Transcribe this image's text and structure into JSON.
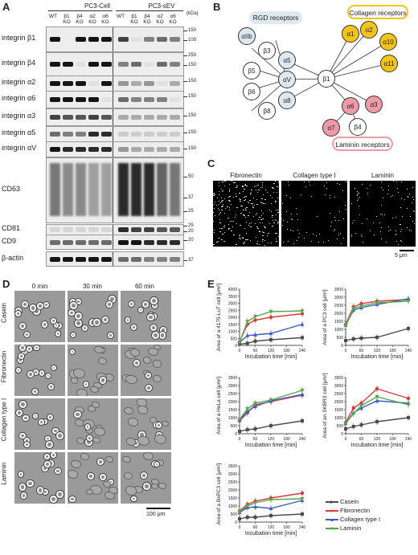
{
  "panels": {
    "a": "A",
    "b": "B",
    "c": "C",
    "d": "D",
    "e": "E"
  },
  "panelA": {
    "group_left": "PC3-Cell",
    "group_right": "PC3-sEV",
    "unit": "(kDa)",
    "lanes": [
      "WT",
      "β1 KO",
      "β4 KO",
      "α2 KO",
      "α6 KO"
    ],
    "rows": [
      {
        "label": "integrin β1",
        "marks": [
          "150",
          "100"
        ]
      },
      {
        "label": "integrin β4",
        "marks": [
          "250",
          "150"
        ]
      },
      {
        "label": "integrin α2",
        "marks": [
          "150"
        ]
      },
      {
        "label": "integrin α6",
        "marks": [
          "150"
        ]
      },
      {
        "label": "integrin α3",
        "marks": [
          "150"
        ]
      },
      {
        "label": "integrin α5",
        "marks": [
          "150"
        ]
      },
      {
        "label": "integrin αV",
        "marks": [
          "150"
        ]
      },
      {
        "label": "CD63",
        "marks": [
          "50",
          "37",
          "25"
        ]
      },
      {
        "label": "CD81",
        "marks": [
          "25",
          "20"
        ]
      },
      {
        "label": "CD9",
        "marks": [
          "20"
        ]
      },
      {
        "label": "β-actin",
        "marks": [
          "37"
        ]
      }
    ]
  },
  "panelB": {
    "rgd_title": "RGD receptors",
    "col_title": "Collagen receptors",
    "lam_title": "Laminin receptors",
    "nodes": {
      "aIIb": "αIIb",
      "b3": "β3",
      "b5": "β5",
      "b6": "β6",
      "b8": "β8",
      "aV": "αV",
      "a5": "α5",
      "a8": "α8",
      "b1": "β1",
      "a1": "α1",
      "a2": "α2",
      "a10": "α10",
      "a11": "α11",
      "a6": "α6",
      "a3": "α3",
      "a7": "α7",
      "b4": "β4"
    }
  },
  "panelC": {
    "cols": [
      "Fibronectin",
      "Collagen type I",
      "Laminin"
    ],
    "scale": "5 μm"
  },
  "panelD": {
    "cols": [
      "0 min",
      "30 min",
      "60 min"
    ],
    "rows": [
      "Casein",
      "Fibronectin",
      "Collagen type I",
      "Laminin"
    ],
    "scale": "100 μm"
  },
  "chart_data": [
    {
      "type": "line",
      "ylabel": "Area of a 4175-LuT cell [μm²]",
      "xlabel": "Incubation time [min]",
      "x": [
        0,
        30,
        60,
        120,
        240
      ],
      "ylim": [
        0,
        4000
      ],
      "yticks": [
        0,
        500,
        1000,
        1500,
        2000,
        2500,
        3000,
        3500,
        4000
      ],
      "xticks": [
        0,
        60,
        120,
        180,
        240
      ],
      "series": [
        {
          "name": "Casein",
          "values": [
            80,
            150,
            300,
            400,
            550
          ]
        },
        {
          "name": "Fibronectin",
          "values": [
            250,
            1500,
            1800,
            2000,
            2250
          ]
        },
        {
          "name": "Collagen type I",
          "values": [
            200,
            700,
            750,
            850,
            1500
          ]
        },
        {
          "name": "Laminin",
          "values": [
            200,
            1700,
            2050,
            2400,
            2450
          ]
        }
      ]
    },
    {
      "type": "line",
      "ylabel": "Area of a PC3 cell [μm²]",
      "xlabel": "Incubation time [min]",
      "x": [
        0,
        30,
        60,
        120,
        240
      ],
      "ylim": [
        0,
        3500
      ],
      "yticks": [
        0,
        500,
        1000,
        1500,
        2000,
        2500,
        3000,
        3500
      ],
      "xticks": [
        0,
        60,
        120,
        180,
        240
      ],
      "series": [
        {
          "name": "Casein",
          "values": [
            300,
            400,
            450,
            500,
            1050
          ]
        },
        {
          "name": "Fibronectin",
          "values": [
            1300,
            2400,
            2600,
            2750,
            2850
          ]
        },
        {
          "name": "Collagen type I",
          "values": [
            1250,
            2200,
            2350,
            2550,
            2900
          ]
        },
        {
          "name": "Laminin",
          "values": [
            1200,
            2300,
            2450,
            2650,
            2750
          ]
        }
      ]
    },
    {
      "type": "line",
      "ylabel": "Area of a HeLa cell [μm²]",
      "xlabel": "Incubation time [min]",
      "x": [
        0,
        30,
        60,
        120,
        240
      ],
      "ylim": [
        0,
        3500
      ],
      "yticks": [
        0,
        500,
        1000,
        1500,
        2000,
        2500,
        3000,
        3500
      ],
      "xticks": [
        0,
        60,
        120,
        180,
        240
      ],
      "series": [
        {
          "name": "Casein",
          "values": [
            150,
            250,
            300,
            500,
            800
          ]
        },
        {
          "name": "Fibronectin",
          "values": [
            800,
            1300,
            1800,
            2000,
            2400
          ]
        },
        {
          "name": "Collagen type I",
          "values": [
            850,
            1400,
            1700,
            2050,
            2450
          ]
        },
        {
          "name": "Laminin",
          "values": [
            900,
            1550,
            1900,
            2100,
            2700
          ]
        }
      ]
    },
    {
      "type": "line",
      "ylabel": "Area of an SKBR3 cell [μm²]",
      "xlabel": "Incubation time [min]",
      "x": [
        0,
        30,
        60,
        120,
        240
      ],
      "ylim": [
        0,
        3500
      ],
      "yticks": [
        0,
        500,
        1000,
        1500,
        2000,
        2500,
        3000,
        3500
      ],
      "xticks": [
        0,
        60,
        120,
        180,
        240
      ],
      "series": [
        {
          "name": "Casein",
          "values": [
            300,
            450,
            550,
            750,
            1000
          ]
        },
        {
          "name": "Fibronectin",
          "values": [
            700,
            1600,
            1900,
            2800,
            2200
          ]
        },
        {
          "name": "Collagen type I",
          "values": [
            650,
            1300,
            1600,
            2050,
            1900
          ]
        },
        {
          "name": "Laminin",
          "values": [
            650,
            1250,
            1750,
            2300,
            1800
          ]
        }
      ]
    },
    {
      "type": "line",
      "ylabel": "Area of a BxPC3 cell [μm²]",
      "xlabel": "Incubation time [min]",
      "x": [
        0,
        30,
        60,
        120,
        240
      ],
      "ylim": [
        0,
        3500
      ],
      "yticks": [
        0,
        500,
        1000,
        1500,
        2000,
        2500,
        3000,
        3500
      ],
      "xticks": [
        0,
        60,
        120,
        180,
        240
      ],
      "series": [
        {
          "name": "Casein",
          "values": [
            200,
            300,
            300,
            400,
            500
          ]
        },
        {
          "name": "Fibronectin",
          "values": [
            700,
            1100,
            1300,
            1500,
            1800
          ]
        },
        {
          "name": "Collagen type I",
          "values": [
            600,
            900,
            950,
            850,
            1350
          ]
        },
        {
          "name": "Laminin",
          "values": [
            650,
            1000,
            1200,
            1400,
            1450
          ]
        }
      ]
    }
  ],
  "legend": {
    "items": [
      "Casein",
      "Fibronectin",
      "Collagen type I",
      "Laminin"
    ]
  },
  "colors": {
    "Casein": "#4d4d4d",
    "Fibronectin": "#d93a3a",
    "Collagen type I": "#3a5fc2",
    "Laminin": "#55a84a"
  }
}
